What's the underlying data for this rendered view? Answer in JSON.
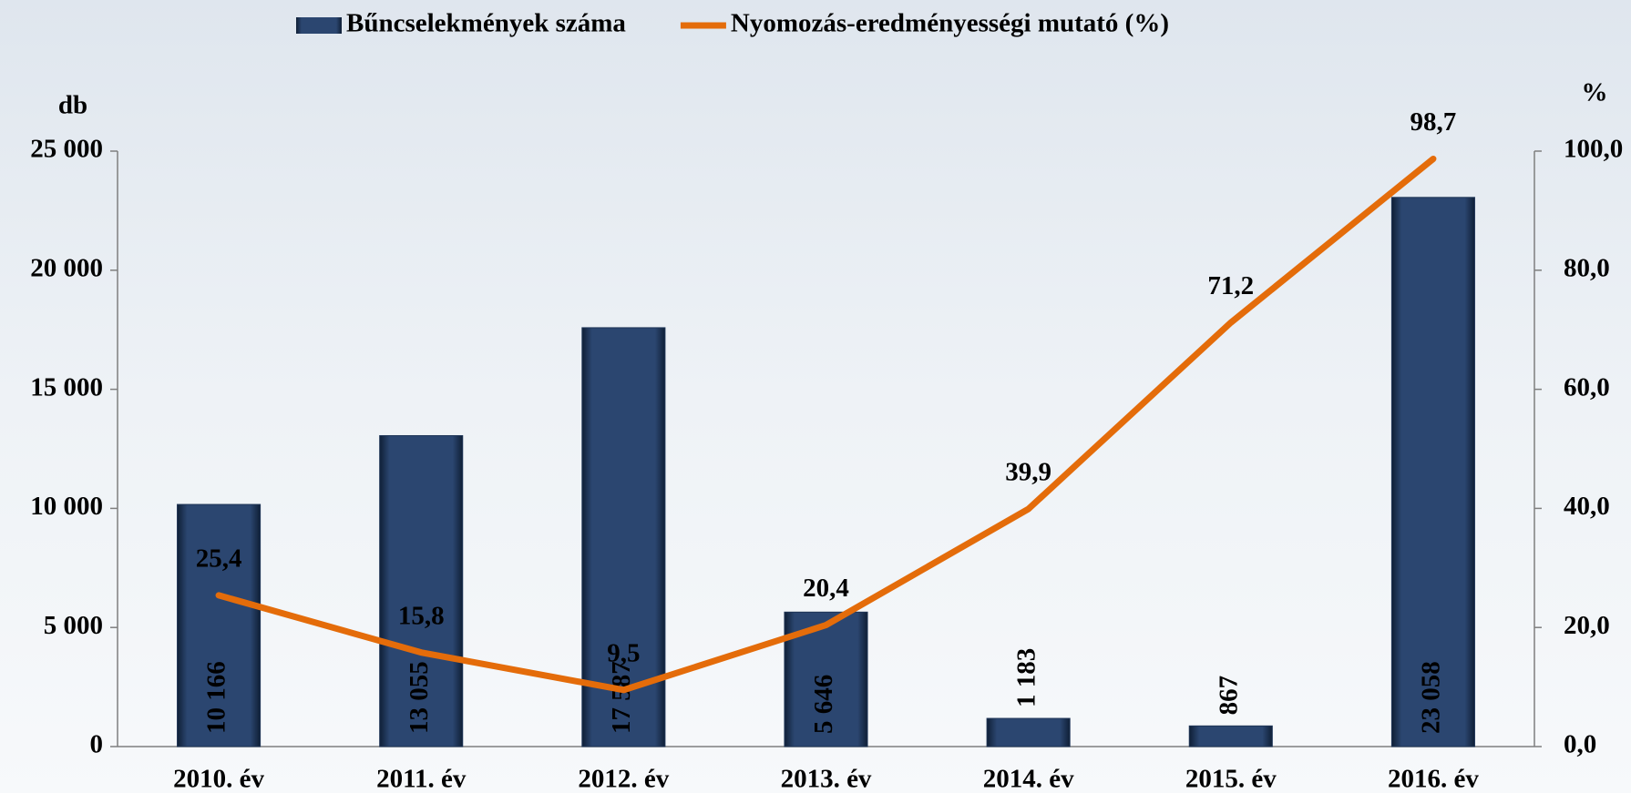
{
  "chart_data": {
    "type": "bar",
    "categories": [
      "2010. év",
      "2011. év",
      "2012. év",
      "2013. év",
      "2014. év",
      "2015. év",
      "2016. év"
    ],
    "series": [
      {
        "name": "Bűncselekmények száma",
        "type": "bar",
        "color": "#1f3556",
        "values": [
          10166,
          13055,
          17587,
          5646,
          1183,
          867,
          23058
        ],
        "value_labels": [
          "10 166",
          "13 055",
          "17 587",
          "5 646",
          "1 183",
          "867",
          "23 058"
        ]
      },
      {
        "name": "Nyomozás-eredményességi mutató (%)",
        "type": "line",
        "axis": "y2",
        "color": "#e46c0a",
        "values": [
          25.4,
          15.8,
          9.5,
          20.4,
          39.9,
          71.2,
          98.7
        ],
        "value_labels": [
          "25,4",
          "15,8",
          "9,5",
          "20,4",
          "39,9",
          "71,2",
          "98,7"
        ]
      }
    ],
    "ylabel": "db",
    "y2label": "%",
    "ylim": [
      0,
      25000
    ],
    "yticks": [
      0,
      {
        "value": 5000,
        "label": "5 000"
      },
      {
        "value": 10000,
        "label": "10 000"
      },
      {
        "value": 15000,
        "label": "15 000"
      },
      {
        "value": 20000,
        "label": "20 000"
      },
      {
        "value": 25000,
        "label": "25 000"
      }
    ],
    "y2lim": [
      0,
      100
    ],
    "y2ticks": [
      {
        "value": 0,
        "label": "0,0"
      },
      {
        "value": 20,
        "label": "20,0"
      },
      {
        "value": 40,
        "label": "40,0"
      },
      {
        "value": 60,
        "label": "60,0"
      },
      {
        "value": 80,
        "label": "80,0"
      },
      {
        "value": 100,
        "label": "100,0"
      }
    ],
    "legend": "top"
  }
}
